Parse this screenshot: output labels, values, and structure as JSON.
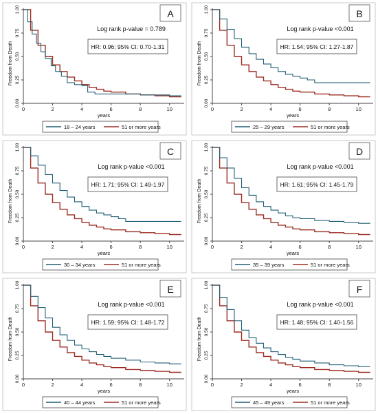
{
  "colors": {
    "comparison": "#1f5e74",
    "reference": "#9b2d22",
    "axis": "#444444"
  },
  "shared": {
    "xlabel": "years",
    "ylabel": "Freedom from Death",
    "reference_label": "51 or more years"
  },
  "chart_data": [
    {
      "type": "line",
      "panel": "A",
      "logrank": "Log rank p-value = 0.789",
      "hr": "HR: 0.96; 95% CI: 0.70-1.31",
      "xlabel": "years",
      "ylabel": "Freedom from Death",
      "xlim": [
        0,
        11
      ],
      "ylim": [
        0,
        1
      ],
      "xticks": [
        0,
        2,
        4,
        6,
        8,
        10
      ],
      "yticks": [
        0,
        0.25,
        0.5,
        0.75,
        1.0
      ],
      "legend": [
        "18 – 24 years",
        "51 or more years"
      ],
      "series": [
        {
          "name": "18 – 24 years",
          "x": [
            0,
            0.3,
            0.6,
            0.9,
            1.2,
            1.5,
            1.9,
            2.2,
            2.6,
            3.0,
            3.5,
            4.0,
            4.4,
            4.9,
            5.5,
            6.0,
            7.0,
            8.0,
            9.0,
            10.0,
            10.8
          ],
          "y": [
            1,
            0.87,
            0.74,
            0.64,
            0.55,
            0.48,
            0.4,
            0.34,
            0.29,
            0.22,
            0.2,
            0.19,
            0.12,
            0.1,
            0.1,
            0.1,
            0.1,
            0.09,
            0.09,
            0.08,
            0.08
          ]
        },
        {
          "name": "51 or more years",
          "x": [
            0,
            0.5,
            1,
            1.5,
            2,
            2.5,
            3,
            3.5,
            4,
            4.5,
            5,
            5.5,
            6,
            7,
            8,
            9,
            10,
            10.8
          ],
          "y": [
            1,
            0.78,
            0.62,
            0.5,
            0.41,
            0.34,
            0.28,
            0.24,
            0.2,
            0.17,
            0.15,
            0.13,
            0.12,
            0.1,
            0.09,
            0.08,
            0.07,
            0.07
          ]
        }
      ]
    },
    {
      "type": "line",
      "panel": "B",
      "logrank": "Log rank p-value <0.001",
      "hr": "HR: 1.54; 95% CI: 1.27-1.87",
      "xlabel": "years",
      "ylabel": "Freedom from Death",
      "xlim": [
        0,
        11
      ],
      "ylim": [
        0,
        1
      ],
      "xticks": [
        0,
        2,
        4,
        6,
        8,
        10
      ],
      "yticks": [
        0,
        0.25,
        0.5,
        0.75,
        1.0
      ],
      "legend": [
        "25 – 29 years",
        "51 or more years"
      ],
      "series": [
        {
          "name": "25 – 29 years",
          "x": [
            0,
            0.5,
            1,
            1.5,
            2,
            2.5,
            3,
            3.5,
            4,
            4.5,
            5,
            5.5,
            6,
            6.5,
            7,
            8,
            9,
            10,
            10.8
          ],
          "y": [
            1,
            0.9,
            0.79,
            0.69,
            0.6,
            0.53,
            0.47,
            0.42,
            0.38,
            0.34,
            0.31,
            0.29,
            0.27,
            0.25,
            0.22,
            0.22,
            0.22,
            0.22,
            0.22
          ]
        },
        {
          "name": "51 or more years",
          "x": [
            0,
            0.5,
            1,
            1.5,
            2,
            2.5,
            3,
            3.5,
            4,
            4.5,
            5,
            5.5,
            6,
            7,
            8,
            9,
            10,
            10.8
          ],
          "y": [
            1,
            0.78,
            0.62,
            0.5,
            0.41,
            0.34,
            0.28,
            0.24,
            0.2,
            0.17,
            0.15,
            0.13,
            0.12,
            0.1,
            0.09,
            0.08,
            0.07,
            0.07
          ]
        }
      ]
    },
    {
      "type": "line",
      "panel": "C",
      "logrank": "Log rank p-value <0.001",
      "hr": "HR: 1.71; 95% CI: 1.49-1.97",
      "xlabel": "years",
      "ylabel": "Freedom from Death",
      "xlim": [
        0,
        11
      ],
      "ylim": [
        0,
        1
      ],
      "xticks": [
        0,
        2,
        4,
        6,
        8,
        10
      ],
      "yticks": [
        0,
        0.25,
        0.5,
        0.75,
        1.0
      ],
      "legend": [
        "30 – 34 years",
        "51 or more years"
      ],
      "series": [
        {
          "name": "30 – 34 years",
          "x": [
            0,
            0.5,
            1,
            1.5,
            2,
            2.5,
            3,
            3.5,
            4,
            4.5,
            5,
            5.5,
            6,
            6.5,
            7,
            8,
            9,
            10,
            10.8
          ],
          "y": [
            1,
            0.91,
            0.81,
            0.71,
            0.62,
            0.54,
            0.47,
            0.42,
            0.37,
            0.33,
            0.3,
            0.28,
            0.26,
            0.24,
            0.21,
            0.21,
            0.21,
            0.21,
            0.21
          ]
        },
        {
          "name": "51 or more years",
          "x": [
            0,
            0.5,
            1,
            1.5,
            2,
            2.5,
            3,
            3.5,
            4,
            4.5,
            5,
            5.5,
            6,
            7,
            8,
            9,
            10,
            10.8
          ],
          "y": [
            1,
            0.78,
            0.62,
            0.5,
            0.41,
            0.34,
            0.28,
            0.24,
            0.2,
            0.17,
            0.15,
            0.13,
            0.12,
            0.1,
            0.09,
            0.08,
            0.07,
            0.07
          ]
        }
      ]
    },
    {
      "type": "line",
      "panel": "D",
      "logrank": "Log rank p-value <0.001",
      "hr": "HR: 1.61; 95% CI: 1.45-1.79",
      "xlabel": "years",
      "ylabel": "Freedom from Death",
      "xlim": [
        0,
        11
      ],
      "ylim": [
        0,
        1
      ],
      "xticks": [
        0,
        2,
        4,
        6,
        8,
        10
      ],
      "yticks": [
        0,
        0.25,
        0.5,
        0.75,
        1.0
      ],
      "legend": [
        "35 – 39 years",
        "51 or more years"
      ],
      "series": [
        {
          "name": "35 – 39 years",
          "x": [
            0,
            0.5,
            1,
            1.5,
            2,
            2.5,
            3,
            3.5,
            4,
            4.5,
            5,
            5.5,
            6,
            7,
            8,
            9,
            10,
            10.8
          ],
          "y": [
            1,
            0.89,
            0.78,
            0.67,
            0.57,
            0.49,
            0.42,
            0.37,
            0.33,
            0.3,
            0.27,
            0.25,
            0.24,
            0.22,
            0.21,
            0.2,
            0.19,
            0.19
          ]
        },
        {
          "name": "51 or more years",
          "x": [
            0,
            0.5,
            1,
            1.5,
            2,
            2.5,
            3,
            3.5,
            4,
            4.5,
            5,
            5.5,
            6,
            7,
            8,
            9,
            10,
            10.8
          ],
          "y": [
            1,
            0.78,
            0.62,
            0.5,
            0.41,
            0.34,
            0.28,
            0.24,
            0.2,
            0.17,
            0.15,
            0.13,
            0.12,
            0.1,
            0.09,
            0.08,
            0.07,
            0.07
          ]
        }
      ]
    },
    {
      "type": "line",
      "panel": "E",
      "logrank": "Log rank p-value <0.001",
      "hr": "HR: 1.59; 95% CI: 1.48-1.72",
      "xlabel": "years",
      "ylabel": "Freedom from Death",
      "xlim": [
        0,
        11
      ],
      "ylim": [
        0,
        1
      ],
      "xticks": [
        0,
        2,
        4,
        6,
        8,
        10
      ],
      "yticks": [
        0,
        0.25,
        0.5,
        0.75,
        1.0
      ],
      "legend": [
        "40 – 44 years",
        "51 or more years"
      ],
      "series": [
        {
          "name": "40 – 44 years",
          "x": [
            0,
            0.5,
            1,
            1.5,
            2,
            2.5,
            3,
            3.5,
            4,
            4.5,
            5,
            5.5,
            6,
            7,
            8,
            9,
            10,
            10.8
          ],
          "y": [
            1,
            0.88,
            0.76,
            0.65,
            0.55,
            0.47,
            0.41,
            0.36,
            0.32,
            0.29,
            0.26,
            0.24,
            0.22,
            0.2,
            0.18,
            0.17,
            0.16,
            0.16
          ]
        },
        {
          "name": "51 or more years",
          "x": [
            0,
            0.5,
            1,
            1.5,
            2,
            2.5,
            3,
            3.5,
            4,
            4.5,
            5,
            5.5,
            6,
            7,
            8,
            9,
            10,
            10.8
          ],
          "y": [
            1,
            0.78,
            0.62,
            0.5,
            0.41,
            0.34,
            0.28,
            0.24,
            0.2,
            0.17,
            0.15,
            0.13,
            0.12,
            0.1,
            0.09,
            0.08,
            0.07,
            0.07
          ]
        }
      ]
    },
    {
      "type": "line",
      "panel": "F",
      "logrank": "Log rank p-value <0.001",
      "hr": "HR: 1.48; 95% CI: 1.40-1.56",
      "xlabel": "years",
      "ylabel": "Freedom from Death",
      "xlim": [
        0,
        11
      ],
      "ylim": [
        0,
        1
      ],
      "xticks": [
        0,
        2,
        4,
        6,
        8,
        10
      ],
      "yticks": [
        0,
        0.25,
        0.5,
        0.75,
        1.0
      ],
      "legend": [
        "45 – 49 years",
        "51 or more years"
      ],
      "series": [
        {
          "name": "45 – 49 years",
          "x": [
            0,
            0.5,
            1,
            1.5,
            2,
            2.5,
            3,
            3.5,
            4,
            4.5,
            5,
            5.5,
            6,
            7,
            8,
            9,
            10,
            10.8
          ],
          "y": [
            1,
            0.87,
            0.74,
            0.62,
            0.52,
            0.44,
            0.38,
            0.33,
            0.29,
            0.26,
            0.23,
            0.21,
            0.19,
            0.17,
            0.15,
            0.14,
            0.13,
            0.13
          ]
        },
        {
          "name": "51 or more years",
          "x": [
            0,
            0.5,
            1,
            1.5,
            2,
            2.5,
            3,
            3.5,
            4,
            4.5,
            5,
            5.5,
            6,
            7,
            8,
            9,
            10,
            10.8
          ],
          "y": [
            1,
            0.78,
            0.62,
            0.5,
            0.41,
            0.34,
            0.28,
            0.24,
            0.2,
            0.17,
            0.15,
            0.13,
            0.12,
            0.1,
            0.09,
            0.08,
            0.07,
            0.07
          ]
        }
      ]
    }
  ]
}
